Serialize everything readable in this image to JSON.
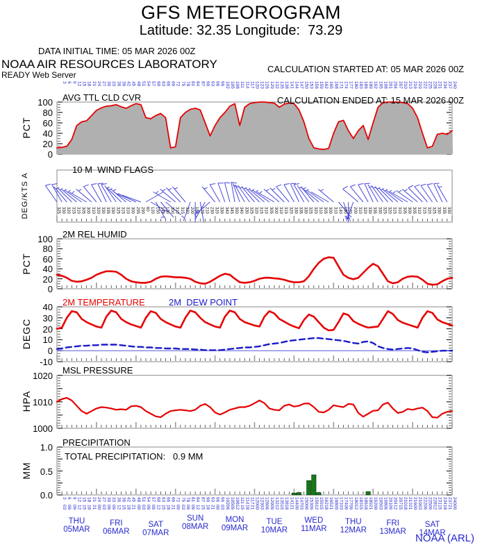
{
  "header": {
    "title": "GFS METEOROGRAM",
    "subtitle": "Latitude: 32.35 Longitude:  73.29",
    "data_initial_time": "DATA INITIAL TIME: 05 MAR 2026 00Z",
    "calc_started": "CALCULATION STARTED AT: 05 MAR 2026 00Z",
    "calc_ended": "CALCULATION ENDED AT: 15 MAR 2026 00Z",
    "org": "NOAA AIR RESOURCES LABORATORY",
    "server": "READY Web Server"
  },
  "footer": {
    "credit": "NOAA (ARL)"
  },
  "colors": {
    "red": "#e60000",
    "blue": "#2828cf",
    "barb_blue": "#4646d8",
    "cloud_fill": "#b0b0b0",
    "precip_green": "#17771b",
    "tick_black": "#222222",
    "tick_gray": "#9a9a9a",
    "border_gray": "#8a8a8a"
  },
  "time_axis": {
    "start_hour": 3,
    "end_hour": 240,
    "step_hours": 3,
    "hour_cycle": [
      "03",
      "06",
      "09",
      "12",
      "15",
      "18",
      "21",
      "00"
    ],
    "days": [
      {
        "name": "THU",
        "date": "05MAR",
        "dy": 4
      },
      {
        "name": "FRI",
        "date": "06MAR",
        "dy": 7
      },
      {
        "name": "SAT",
        "date": "07MAR",
        "dy": 9
      },
      {
        "name": "SUN",
        "date": "08MAR",
        "dy": 0
      },
      {
        "name": "MON",
        "date": "09MAR",
        "dy": 2
      },
      {
        "name": "TUE",
        "date": "10MAR",
        "dy": 5
      },
      {
        "name": "WED",
        "date": "11MAR",
        "dy": 3
      },
      {
        "name": "THU",
        "date": "12MAR",
        "dy": 5
      },
      {
        "name": "FRI",
        "date": "13MAR",
        "dy": 7
      },
      {
        "name": "SAT",
        "date": "14MAR",
        "dy": 9
      }
    ]
  },
  "chart_data": [
    {
      "type": "area",
      "panel": "cloud",
      "title": "AVG TTL CLD CVR",
      "ylabel": "PCT",
      "ylim": [
        0,
        100
      ],
      "x_step_hours": 3,
      "yticks": [
        {
          "v": 100,
          "label": "100"
        },
        {
          "v": 80,
          "label": "80"
        },
        {
          "v": 60,
          "label": "60"
        },
        {
          "v": 40,
          "label": "40"
        },
        {
          "v": 20,
          "label": "20"
        },
        {
          "v": 0,
          "label": "0"
        }
      ],
      "values": [
        12,
        13,
        15,
        28,
        55,
        62,
        64,
        74,
        84,
        89,
        92,
        93,
        95,
        91,
        88,
        93,
        97,
        95,
        70,
        68,
        74,
        78,
        70,
        12,
        14,
        70,
        80,
        86,
        88,
        85,
        60,
        35,
        55,
        70,
        80,
        92,
        97,
        55,
        90,
        97,
        99,
        100,
        100,
        99,
        98,
        90,
        96,
        98,
        97,
        85,
        62,
        30,
        12,
        10,
        9,
        11,
        40,
        62,
        65,
        45,
        30,
        45,
        55,
        28,
        60,
        90,
        99,
        100,
        100,
        100,
        99,
        97,
        88,
        70,
        40,
        12,
        15,
        38,
        40,
        38,
        45
      ]
    },
    {
      "type": "wind-barbs",
      "panel": "wind",
      "title": "10 M  WIND FLAGS",
      "ylabel": "DEG/KTS  A",
      "directions_deg": [
        325,
        330,
        320,
        315,
        310,
        305,
        300,
        310,
        320,
        330,
        335,
        330,
        325,
        315,
        310,
        300,
        295,
        290,
        60,
        120,
        150,
        140,
        130,
        300,
        310,
        315,
        320,
        200,
        180,
        170,
        210,
        230,
        320,
        330,
        340,
        345,
        350,
        340,
        330,
        325,
        320,
        315,
        310,
        305,
        300,
        310,
        315,
        320,
        330,
        335,
        330,
        325,
        320,
        310,
        305,
        300,
        310,
        140,
        160,
        180,
        200,
        310,
        320,
        330,
        335,
        330,
        325,
        320,
        315,
        310,
        305,
        300,
        305,
        310,
        315,
        320,
        325,
        330,
        335,
        330
      ],
      "speeds_kts": [
        12,
        10,
        8,
        7,
        5,
        5,
        7,
        8,
        10,
        12,
        12,
        10,
        8,
        7,
        5,
        4,
        3,
        3,
        4,
        5,
        5,
        4,
        3,
        5,
        7,
        8,
        8,
        5,
        4,
        4,
        5,
        6,
        8,
        10,
        12,
        12,
        10,
        8,
        7,
        7,
        8,
        8,
        7,
        6,
        5,
        7,
        8,
        10,
        12,
        12,
        10,
        8,
        7,
        5,
        4,
        3,
        5,
        6,
        7,
        8,
        8,
        10,
        12,
        12,
        10,
        8,
        7,
        5,
        5,
        7,
        8,
        8,
        7,
        8,
        10,
        10,
        12,
        12,
        10,
        8
      ]
    },
    {
      "type": "line",
      "panel": "humid",
      "title": "2M REL HUMID",
      "ylabel": "PCT",
      "ylim": [
        0,
        100
      ],
      "x_step_hours": 3,
      "yticks": [
        {
          "v": 100,
          "label": "100"
        },
        {
          "v": 80,
          "label": "80"
        },
        {
          "v": 60,
          "label": "60"
        },
        {
          "v": 40,
          "label": "40"
        },
        {
          "v": 20,
          "label": "20"
        },
        {
          "v": 0,
          "label": "0"
        }
      ],
      "values": [
        28,
        26,
        22,
        16,
        14,
        15,
        18,
        22,
        28,
        32,
        35,
        35,
        34,
        28,
        20,
        15,
        13,
        12,
        12,
        14,
        20,
        24,
        25,
        24,
        23,
        23,
        22,
        20,
        14,
        11,
        10,
        14,
        20,
        26,
        30,
        28,
        20,
        13,
        12,
        13,
        16,
        20,
        22,
        22,
        21,
        20,
        18,
        15,
        13,
        13,
        15,
        25,
        40,
        52,
        60,
        63,
        62,
        45,
        28,
        22,
        19,
        22,
        32,
        42,
        50,
        45,
        30,
        15,
        11,
        13,
        20,
        24,
        25,
        24,
        18,
        10,
        8,
        9,
        15,
        20,
        22
      ]
    },
    {
      "type": "line-multi",
      "panel": "temp",
      "ylabel": "DEGC",
      "ylim": [
        -10,
        40
      ],
      "x_step_hours": 3,
      "yticks": [
        {
          "v": 40,
          "label": "40"
        },
        {
          "v": 30,
          "label": "30"
        },
        {
          "v": 20,
          "label": "20"
        },
        {
          "v": 10,
          "label": "10"
        },
        {
          "v": 0,
          "label": "0"
        },
        {
          "v": -10,
          "label": "-10"
        }
      ],
      "zero_line": 0,
      "series": [
        {
          "name": "2M TEMPERATURE",
          "style": "solid",
          "color": "#e60000",
          "values": [
            20,
            21,
            30,
            36,
            35,
            29,
            26,
            24,
            22,
            21,
            31,
            36.5,
            35,
            29,
            26,
            24,
            22.5,
            21,
            30,
            36,
            34.5,
            29,
            26,
            24,
            22,
            21,
            30,
            36.5,
            35,
            30,
            26,
            24,
            22,
            21,
            31,
            36.5,
            35,
            29,
            26,
            24.5,
            23,
            22,
            31,
            36,
            34,
            29,
            26.5,
            24,
            22,
            20.5,
            28,
            33,
            31,
            26,
            21,
            18.5,
            19,
            26,
            34,
            32.5,
            27,
            24.5,
            22.5,
            21,
            21.5,
            22,
            29,
            36,
            33.5,
            28,
            25.5,
            24,
            22.5,
            21,
            30,
            36,
            34.5,
            28.5,
            26,
            24.5,
            23
          ]
        },
        {
          "name": "2M  DEW POINT",
          "style": "dashed",
          "color": "#1a1acc",
          "values": [
            1.5,
            2,
            3,
            3.5,
            4,
            4.5,
            4.5,
            5,
            5,
            5.5,
            5.5,
            5.5,
            5.5,
            5,
            4.5,
            4,
            3.5,
            3.5,
            3,
            3,
            2.5,
            2.5,
            2,
            2,
            2,
            1.5,
            1.5,
            1.5,
            1,
            1,
            0.5,
            0.5,
            0.5,
            0.5,
            1,
            1.5,
            2,
            2.5,
            3,
            3,
            3.5,
            4,
            5,
            6,
            6.5,
            7,
            8,
            9,
            9.5,
            10,
            10.5,
            11,
            11.5,
            11.5,
            11,
            10.5,
            10,
            9.5,
            9,
            8,
            7,
            6.5,
            8,
            8.5,
            7,
            4,
            2.5,
            1.5,
            1,
            1.5,
            2,
            2.5,
            2,
            0.5,
            -1,
            -1.5,
            -1,
            -0.5,
            0,
            0,
            0
          ]
        }
      ]
    },
    {
      "type": "line",
      "panel": "pres",
      "title": "MSL PRESSURE",
      "ylabel": "HPA",
      "ylim": [
        1000,
        1020
      ],
      "x_step_hours": 3,
      "yticks": [
        {
          "v": 1020,
          "label": "1020"
        },
        {
          "v": 1010,
          "label": "1010"
        },
        {
          "v": 1000,
          "label": "1000"
        }
      ],
      "values": [
        1010,
        1011,
        1011.5,
        1010.5,
        1008.5,
        1006.5,
        1005.5,
        1006.5,
        1007.5,
        1008,
        1007.8,
        1007.5,
        1007,
        1007.2,
        1007,
        1008.3,
        1008.5,
        1008,
        1006.5,
        1005.5,
        1004.5,
        1004.2,
        1005.5,
        1006.5,
        1006.8,
        1007,
        1006.8,
        1006.5,
        1007,
        1008.5,
        1009.2,
        1008,
        1006,
        1005.2,
        1006,
        1007,
        1007.5,
        1008,
        1008,
        1008.5,
        1009.5,
        1010.5,
        1009.5,
        1007.5,
        1007,
        1006.8,
        1008.5,
        1009,
        1008.2,
        1008.5,
        1009.3,
        1009.4,
        1008,
        1006.2,
        1006,
        1007,
        1008.7,
        1008.3,
        1008,
        1009.2,
        1009,
        1005.8,
        1004.4,
        1005.5,
        1006.6,
        1006.8,
        1009,
        1009.7,
        1007.5,
        1005.8,
        1006.2,
        1007.3,
        1007,
        1007.5,
        1007.8,
        1006.5,
        1004.2,
        1004,
        1005.5,
        1006.2,
        1006.5
      ]
    },
    {
      "type": "bar",
      "panel": "prec",
      "title": "PRECIPITATION",
      "note": "TOTAL PRECIPITATION:   0.9 MM",
      "ylabel": "MM",
      "ylim": [
        0,
        1
      ],
      "yticks": [
        {
          "v": 1,
          "label": "1.0"
        },
        {
          "v": 0.5,
          "label": "0.5"
        },
        {
          "v": 0,
          "label": "0.0"
        }
      ],
      "total_mm": 0.9,
      "bars": [
        {
          "hour": 144,
          "mm": 0.04
        },
        {
          "hour": 147,
          "mm": 0.05
        },
        {
          "hour": 153,
          "mm": 0.3
        },
        {
          "hour": 156,
          "mm": 0.42
        },
        {
          "hour": 159,
          "mm": 0.05
        },
        {
          "hour": 189,
          "mm": 0.07
        }
      ]
    }
  ]
}
